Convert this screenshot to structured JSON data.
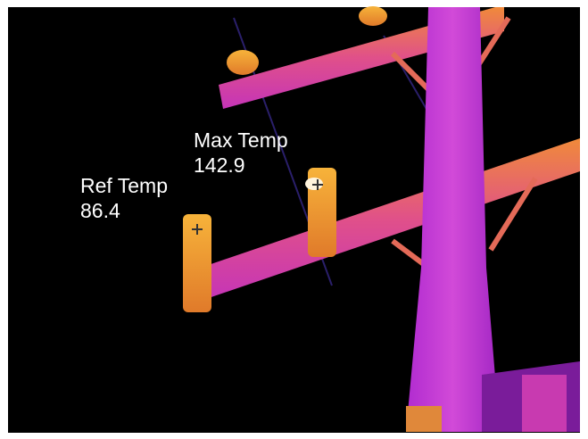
{
  "annotations": [
    {
      "label": "Max Temp",
      "value": 142.9
    },
    {
      "label": "Ref Temp",
      "value": 86.4
    }
  ]
}
